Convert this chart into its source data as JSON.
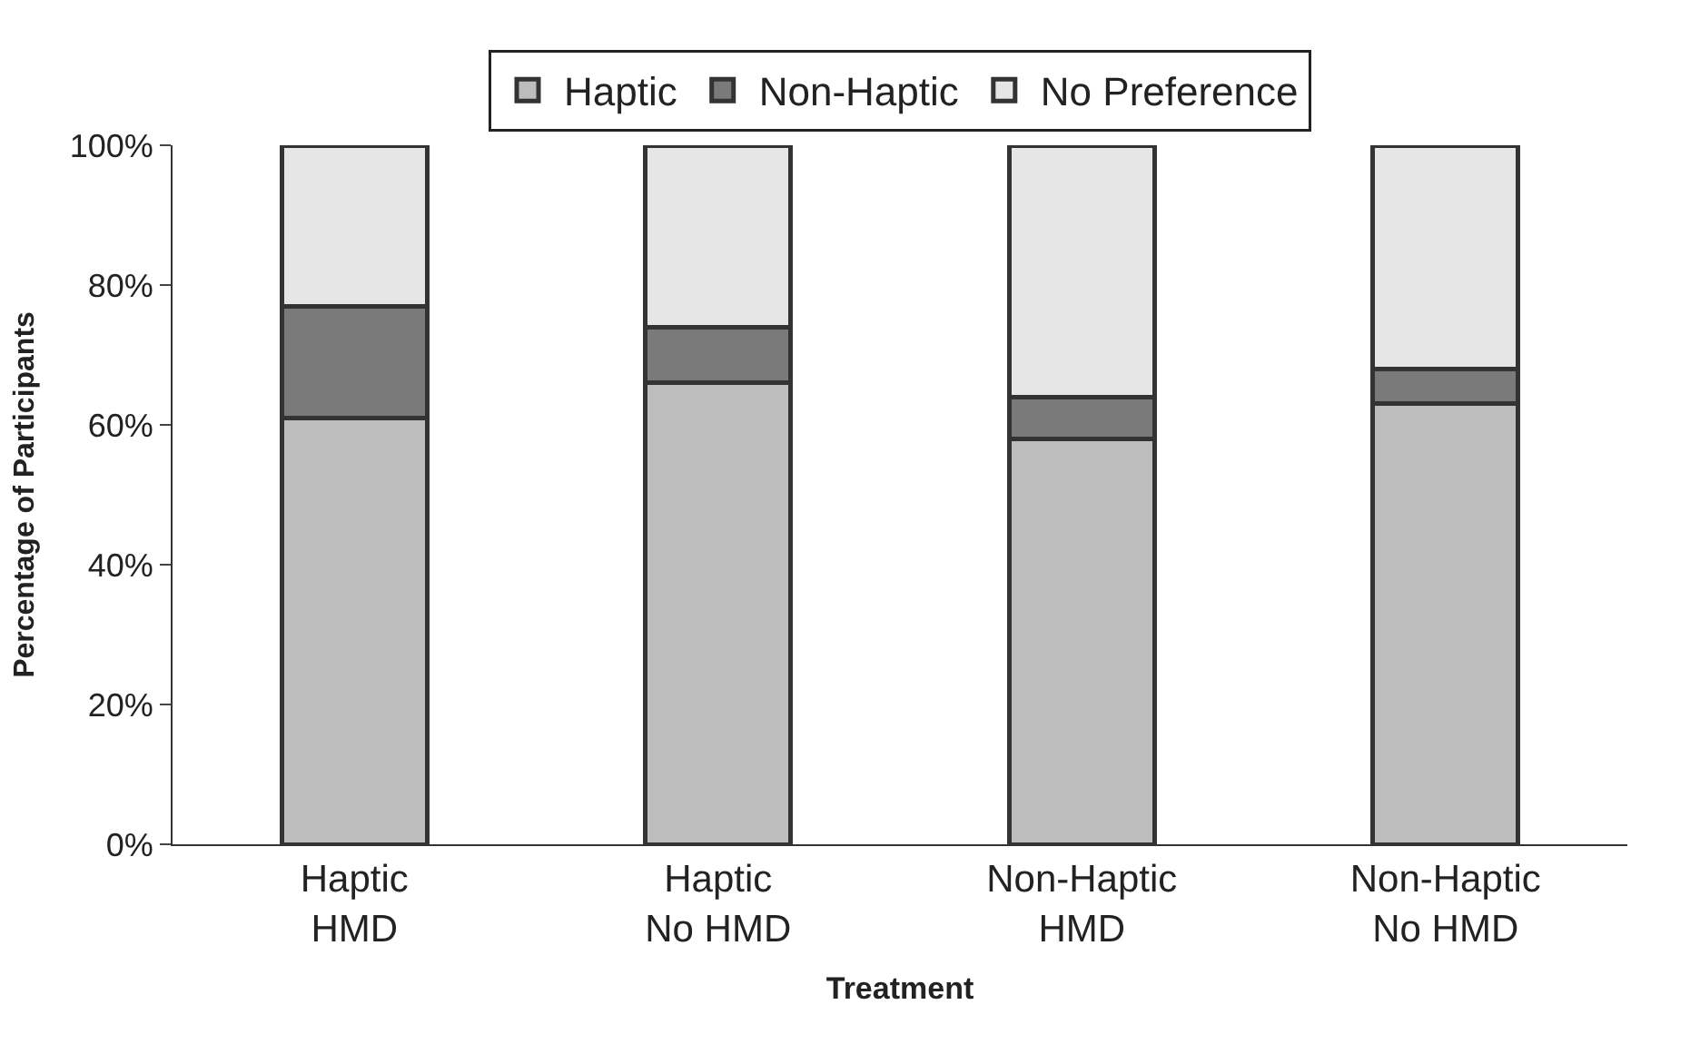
{
  "chart_data": {
    "type": "bar",
    "stacked": true,
    "xlabel": "Treatment",
    "ylabel": "Percentage of Participants",
    "categories": [
      "Haptic\nHMD",
      "Haptic\nNo HMD",
      "Non-Haptic\nHMD",
      "Non-Haptic\nNo HMD"
    ],
    "series": [
      {
        "name": "Haptic",
        "color": "#bdbdbd",
        "values": [
          61,
          66,
          58,
          63
        ]
      },
      {
        "name": "Non-Haptic",
        "color": "#7a7a7a",
        "values": [
          16,
          8,
          6,
          5
        ]
      },
      {
        "name": "No Preference",
        "color": "#e6e6e6",
        "values": [
          23,
          26,
          36,
          32
        ]
      }
    ],
    "ylim": [
      0,
      100
    ],
    "yticks": [
      {
        "value": 0,
        "label": "0%"
      },
      {
        "value": 20,
        "label": "20%"
      },
      {
        "value": 40,
        "label": "40%"
      },
      {
        "value": 60,
        "label": "60%"
      },
      {
        "value": 80,
        "label": "80%"
      },
      {
        "value": 100,
        "label": "100%"
      }
    ],
    "legend": "top"
  }
}
